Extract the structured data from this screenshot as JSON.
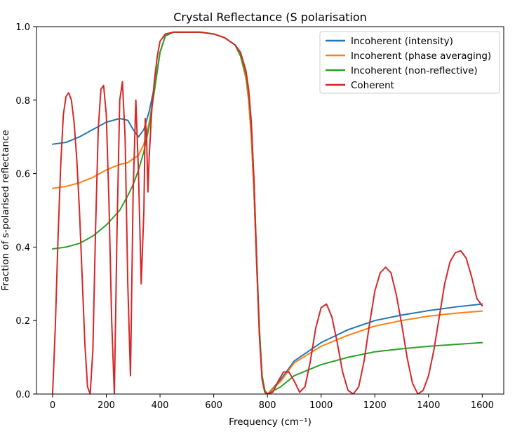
{
  "chart_data": {
    "type": "line",
    "title": "Crystal Reflectance (S polarisation",
    "xlabel": "Frequency (cm⁻¹)",
    "ylabel": "Fraction of s-polarised reflectance",
    "xlim": [
      -60,
      1680
    ],
    "ylim": [
      0,
      1.0
    ],
    "xticks": [
      0,
      200,
      400,
      600,
      800,
      1000,
      1200,
      1400,
      1600
    ],
    "yticks": [
      0.0,
      0.2,
      0.4,
      0.6,
      0.8,
      1.0
    ],
    "xtick_labels": [
      "0",
      "200",
      "400",
      "600",
      "800",
      "1000",
      "1200",
      "1400",
      "1600"
    ],
    "ytick_labels": [
      "0.0",
      "0.2",
      "0.4",
      "0.6",
      "0.8",
      "1.0"
    ],
    "grid": false,
    "legend_position": "top-right",
    "series": [
      {
        "name": "Incoherent (intensity)",
        "color": "#1f77b4",
        "x": [
          0,
          50,
          100,
          150,
          200,
          250,
          280,
          300,
          320,
          340,
          360,
          380,
          400,
          420,
          450,
          500,
          550,
          600,
          640,
          680,
          700,
          720,
          730,
          740,
          750,
          760,
          770,
          780,
          790,
          800,
          850,
          900,
          1000,
          1100,
          1200,
          1300,
          1400,
          1500,
          1600
        ],
        "y": [
          0.68,
          0.685,
          0.7,
          0.72,
          0.74,
          0.75,
          0.745,
          0.72,
          0.7,
          0.72,
          0.77,
          0.84,
          0.93,
          0.975,
          0.985,
          0.985,
          0.985,
          0.98,
          0.97,
          0.95,
          0.92,
          0.86,
          0.8,
          0.7,
          0.55,
          0.35,
          0.17,
          0.05,
          0.01,
          0.0,
          0.04,
          0.09,
          0.14,
          0.175,
          0.2,
          0.215,
          0.227,
          0.237,
          0.245
        ]
      },
      {
        "name": "Incoherent (phase averaging)",
        "color": "#ff7f0e",
        "x": [
          0,
          50,
          100,
          150,
          200,
          250,
          280,
          300,
          320,
          340,
          360,
          380,
          400,
          420,
          450,
          500,
          550,
          600,
          640,
          680,
          700,
          720,
          730,
          740,
          750,
          760,
          770,
          780,
          790,
          800,
          850,
          900,
          1000,
          1100,
          1200,
          1300,
          1400,
          1500,
          1600
        ],
        "y": [
          0.56,
          0.565,
          0.575,
          0.59,
          0.61,
          0.625,
          0.63,
          0.64,
          0.65,
          0.68,
          0.74,
          0.83,
          0.93,
          0.975,
          0.985,
          0.985,
          0.985,
          0.98,
          0.97,
          0.95,
          0.92,
          0.86,
          0.8,
          0.7,
          0.55,
          0.35,
          0.17,
          0.05,
          0.01,
          0.0,
          0.035,
          0.085,
          0.13,
          0.16,
          0.185,
          0.2,
          0.212,
          0.22,
          0.226
        ]
      },
      {
        "name": "Incoherent (non-reflective)",
        "color": "#2ca02c",
        "x": [
          0,
          50,
          100,
          150,
          200,
          250,
          280,
          300,
          320,
          340,
          360,
          380,
          400,
          420,
          450,
          500,
          550,
          600,
          640,
          680,
          700,
          720,
          730,
          740,
          750,
          760,
          770,
          780,
          790,
          800,
          850,
          900,
          1000,
          1100,
          1200,
          1300,
          1400,
          1500,
          1600
        ],
        "y": [
          0.395,
          0.4,
          0.41,
          0.43,
          0.46,
          0.5,
          0.54,
          0.57,
          0.61,
          0.66,
          0.73,
          0.83,
          0.93,
          0.975,
          0.985,
          0.985,
          0.985,
          0.98,
          0.97,
          0.95,
          0.92,
          0.87,
          0.82,
          0.73,
          0.58,
          0.37,
          0.18,
          0.05,
          0.01,
          0.0,
          0.02,
          0.05,
          0.08,
          0.1,
          0.115,
          0.123,
          0.13,
          0.135,
          0.14
        ]
      },
      {
        "name": "Coherent",
        "color": "#d62728",
        "x": [
          0,
          10,
          20,
          30,
          40,
          50,
          60,
          70,
          80,
          90,
          100,
          110,
          120,
          130,
          140,
          150,
          160,
          170,
          180,
          190,
          200,
          210,
          220,
          230,
          240,
          250,
          260,
          270,
          280,
          290,
          300,
          310,
          320,
          330,
          340,
          345,
          350,
          355,
          360,
          370,
          380,
          390,
          400,
          420,
          450,
          500,
          550,
          600,
          640,
          680,
          700,
          720,
          730,
          740,
          750,
          760,
          770,
          780,
          790,
          800,
          820,
          840,
          860,
          880,
          900,
          920,
          940,
          960,
          980,
          1000,
          1020,
          1040,
          1060,
          1080,
          1100,
          1120,
          1140,
          1160,
          1180,
          1200,
          1220,
          1240,
          1260,
          1280,
          1300,
          1320,
          1340,
          1360,
          1380,
          1400,
          1420,
          1440,
          1460,
          1480,
          1500,
          1520,
          1540,
          1560,
          1580,
          1600
        ],
        "y": [
          0.0,
          0.18,
          0.42,
          0.62,
          0.76,
          0.81,
          0.82,
          0.8,
          0.74,
          0.64,
          0.5,
          0.32,
          0.14,
          0.02,
          0.0,
          0.12,
          0.45,
          0.72,
          0.83,
          0.84,
          0.76,
          0.52,
          0.2,
          0.0,
          0.45,
          0.8,
          0.85,
          0.7,
          0.3,
          0.05,
          0.55,
          0.8,
          0.6,
          0.3,
          0.5,
          0.75,
          0.7,
          0.55,
          0.65,
          0.78,
          0.86,
          0.92,
          0.96,
          0.98,
          0.985,
          0.985,
          0.985,
          0.98,
          0.97,
          0.95,
          0.93,
          0.88,
          0.83,
          0.74,
          0.58,
          0.36,
          0.16,
          0.04,
          0.005,
          0.0,
          0.005,
          0.035,
          0.06,
          0.06,
          0.035,
          0.005,
          0.02,
          0.09,
          0.18,
          0.235,
          0.245,
          0.21,
          0.14,
          0.06,
          0.01,
          0.0,
          0.02,
          0.09,
          0.19,
          0.28,
          0.33,
          0.345,
          0.33,
          0.27,
          0.19,
          0.1,
          0.03,
          0.0,
          0.01,
          0.05,
          0.12,
          0.21,
          0.3,
          0.36,
          0.385,
          0.39,
          0.37,
          0.32,
          0.26,
          0.24
        ]
      }
    ]
  }
}
